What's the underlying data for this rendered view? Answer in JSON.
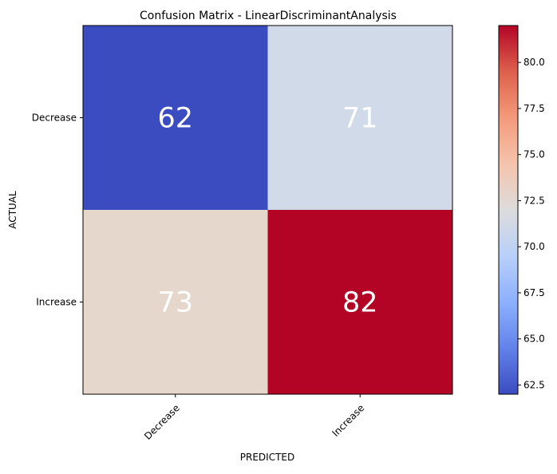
{
  "chart_data": {
    "type": "heatmap",
    "title": "Confusion Matrix - LinearDiscriminantAnalysis",
    "xlabel": "PREDICTED",
    "ylabel": "ACTUAL",
    "x_categories": [
      "Decrease",
      "Increase"
    ],
    "y_categories": [
      "Decrease",
      "Increase"
    ],
    "values": [
      [
        62,
        71
      ],
      [
        73,
        82
      ]
    ],
    "colormap": "coolwarm",
    "color_range": [
      62,
      82
    ],
    "colorbar_ticks": [
      "62.5",
      "65.0",
      "67.5",
      "70.0",
      "72.5",
      "75.0",
      "77.5",
      "80.0"
    ],
    "colorbar_tick_values": [
      62.5,
      65.0,
      67.5,
      70.0,
      72.5,
      75.0,
      77.5,
      80.0
    ],
    "cell_colors": [
      "#3b4cc0",
      "#d1dae9",
      "#e6d7cc",
      "#b40426"
    ],
    "cell_label_color": "#ffffff",
    "colorbar_colors": [
      "#3b4cc0",
      "#6282ea",
      "#8db0fe",
      "#b8d0f9",
      "#dddcdc",
      "#f5c4ac",
      "#f49a7b",
      "#de604d",
      "#b40426"
    ]
  }
}
